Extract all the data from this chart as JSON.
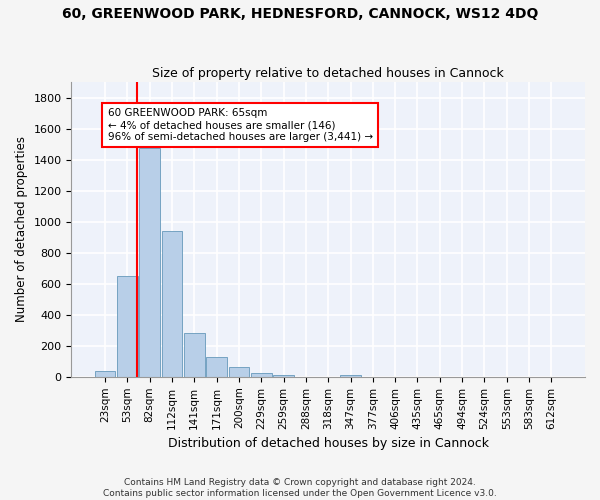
{
  "title_line1": "60, GREENWOOD PARK, HEDNESFORD, CANNOCK, WS12 4DQ",
  "title_line2": "Size of property relative to detached houses in Cannock",
  "xlabel": "Distribution of detached houses by size in Cannock",
  "ylabel": "Number of detached properties",
  "categories": [
    "23sqm",
    "53sqm",
    "82sqm",
    "112sqm",
    "141sqm",
    "171sqm",
    "200sqm",
    "229sqm",
    "259sqm",
    "288sqm",
    "318sqm",
    "347sqm",
    "377sqm",
    "406sqm",
    "435sqm",
    "465sqm",
    "494sqm",
    "524sqm",
    "553sqm",
    "583sqm",
    "612sqm"
  ],
  "values": [
    38,
    648,
    1475,
    938,
    285,
    128,
    62,
    22,
    10,
    0,
    0,
    10,
    0,
    0,
    0,
    0,
    0,
    0,
    0,
    0,
    0
  ],
  "bar_color": "#b8cfe8",
  "bar_edgecolor": "#6699bb",
  "ylim": [
    0,
    1900
  ],
  "yticks": [
    0,
    200,
    400,
    600,
    800,
    1000,
    1200,
    1400,
    1600,
    1800
  ],
  "background_color": "#eef2fa",
  "grid_color": "#ffffff",
  "annotation_line1": "60 GREENWOOD PARK: 65sqm",
  "annotation_line2": "← 4% of detached houses are smaller (146)",
  "annotation_line3": "96% of semi-detached houses are larger (3,441) →",
  "footnote_line1": "Contains HM Land Registry data © Crown copyright and database right 2024.",
  "footnote_line2": "Contains public sector information licensed under the Open Government Licence v3.0.",
  "fig_bg": "#f5f5f5"
}
